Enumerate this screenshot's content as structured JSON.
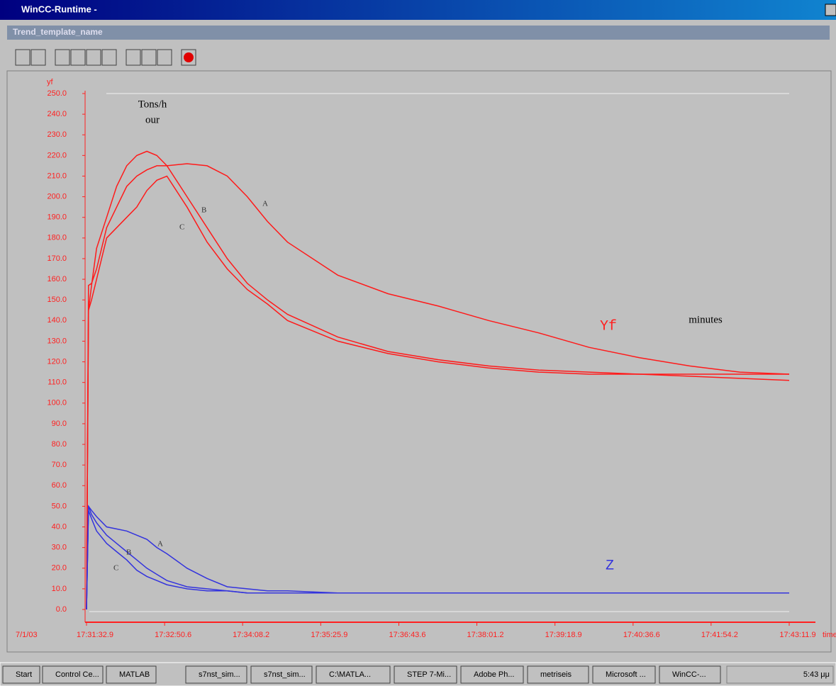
{
  "window": {
    "title": "WinCC-Runtime -",
    "subtitle": "Trend_template_name"
  },
  "chart_data": {
    "type": "line",
    "y_label": "yf",
    "x_label": "time",
    "date": "7/1/03",
    "annotations": [
      "Tons/h",
      "our",
      "Yf",
      "minutes",
      "Z"
    ],
    "x": [
      63092.9,
      63094.9,
      63097.9,
      63102.9,
      63112.9,
      63122.9,
      63132.9,
      63142.9,
      63152.9,
      63162.9,
      63172.9,
      63192.9,
      63212.9,
      63232.9,
      63252.9,
      63272.9,
      63292.9,
      63342.9,
      63392.9,
      63442.9,
      63492.9,
      63542.9,
      63592.9,
      63642.9,
      63692.9,
      63742.9,
      63791.9
    ],
    "series": [
      {
        "name": "A",
        "color": "#ff1a1a",
        "values": [
          0,
          157,
          158,
          165,
          185,
          195,
          205,
          210,
          213,
          215,
          215,
          216,
          215,
          210,
          200,
          188,
          178,
          162,
          153,
          147,
          140,
          134,
          127,
          122,
          118,
          115,
          114
        ]
      },
      {
        "name": "B",
        "color": "#ff1a1a",
        "values": [
          0,
          145,
          157,
          175,
          190,
          205,
          215,
          220,
          222,
          220,
          215,
          200,
          185,
          170,
          158,
          150,
          143,
          132,
          125,
          121,
          118,
          116,
          115,
          114,
          113,
          112,
          111
        ]
      },
      {
        "name": "C",
        "color": "#ff1a1a",
        "values": [
          0,
          145,
          150,
          160,
          180,
          185,
          190,
          195,
          203,
          208,
          210,
          195,
          178,
          165,
          155,
          148,
          140,
          130,
          124,
          120,
          117,
          115,
          114,
          114,
          114,
          114,
          114
        ]
      },
      {
        "name": "A",
        "color": "#3333dd",
        "values": [
          0,
          50,
          48,
          45,
          40,
          39,
          38,
          36,
          34,
          30,
          27,
          20,
          15,
          11,
          10,
          9,
          9,
          8,
          8,
          8,
          8,
          8,
          8,
          8,
          8,
          8,
          8
        ]
      },
      {
        "name": "B",
        "color": "#3333dd",
        "values": [
          0,
          50,
          46,
          42,
          36,
          32,
          28,
          24,
          20,
          17,
          14,
          11,
          10,
          9,
          8,
          8,
          8,
          8,
          8,
          8,
          8,
          8,
          8,
          8,
          8,
          8,
          8
        ]
      },
      {
        "name": "C",
        "color": "#3333dd",
        "values": [
          0,
          48,
          44,
          38,
          32,
          28,
          24,
          19,
          16,
          14,
          12,
          10,
          9,
          9,
          8,
          8,
          8,
          8,
          8,
          8,
          8,
          8,
          8,
          8,
          8,
          8,
          8
        ]
      }
    ],
    "xlim": [
      63092.9,
      63791.9
    ],
    "xticks": [
      {
        "value": 63092.9,
        "label": "17:31:32.9"
      },
      {
        "value": 63170.6,
        "label": "17:32:50.6"
      },
      {
        "value": 63248.2,
        "label": "17:34:08.2"
      },
      {
        "value": 63325.9,
        "label": "17:35:25.9"
      },
      {
        "value": 63403.6,
        "label": "17:36:43.6"
      },
      {
        "value": 63481.2,
        "label": "17:38:01.2"
      },
      {
        "value": 63558.9,
        "label": "17:39:18.9"
      },
      {
        "value": 63636.6,
        "label": "17:40:36.6"
      },
      {
        "value": 63714.2,
        "label": "17:41:54.2"
      },
      {
        "value": 63791.9,
        "label": "17:43:11.9"
      }
    ],
    "ylim": [
      0,
      250
    ],
    "yticks": [
      {
        "value": 0,
        "label": "0.0"
      },
      {
        "value": 10,
        "label": "10.0"
      },
      {
        "value": 20,
        "label": "20.0"
      },
      {
        "value": 30,
        "label": "30.0"
      },
      {
        "value": 40,
        "label": "40.0"
      },
      {
        "value": 50,
        "label": "50.0"
      },
      {
        "value": 60,
        "label": "60.0"
      },
      {
        "value": 70,
        "label": "70.0"
      },
      {
        "value": 80,
        "label": "80.0"
      },
      {
        "value": 90,
        "label": "90.0"
      },
      {
        "value": 100,
        "label": "100.0"
      },
      {
        "value": 110,
        "label": "110.0"
      },
      {
        "value": 120,
        "label": "120.0"
      },
      {
        "value": 130,
        "label": "130.0"
      },
      {
        "value": 140,
        "label": "140.0"
      },
      {
        "value": 150,
        "label": "150.0"
      },
      {
        "value": 160,
        "label": "160.0"
      },
      {
        "value": 170,
        "label": "170.0"
      },
      {
        "value": 180,
        "label": "180.0"
      },
      {
        "value": 190,
        "label": "190.0"
      },
      {
        "value": 200,
        "label": "200.0"
      },
      {
        "value": 210,
        "label": "210.0"
      },
      {
        "value": 220,
        "label": "220.0"
      },
      {
        "value": 230,
        "label": "230.0"
      },
      {
        "value": 240,
        "label": "240.0"
      },
      {
        "value": 250,
        "label": "250.0"
      }
    ],
    "axis_color": "#ff2020"
  },
  "taskbar": {
    "buttons": [
      "Start",
      "Control Ce...",
      "MATLAB",
      "s7nst_sim...",
      "s7nst_sim...",
      "C:\\MATLA...",
      "STEP 7-Mi...",
      "Adobe Ph...",
      "metriseis",
      "Microsoft ...",
      "WinCC-..."
    ],
    "clock": "5:43 μμ"
  }
}
